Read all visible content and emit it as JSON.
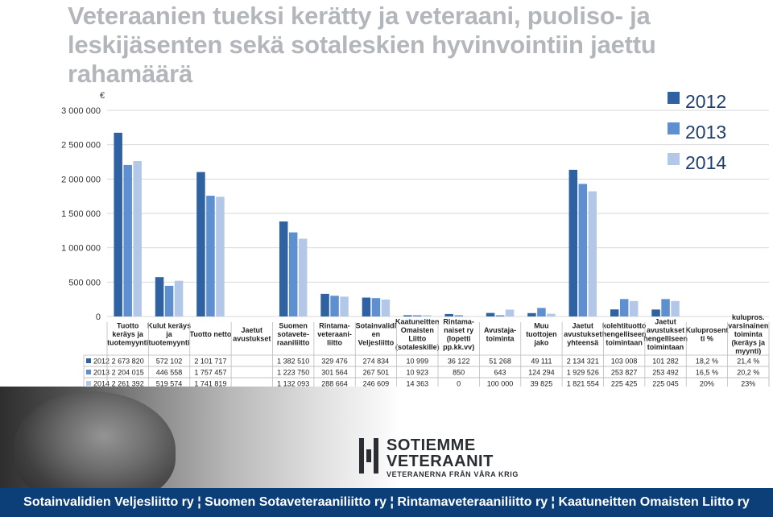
{
  "page": {
    "title": "Veteraanien tueksi kerätty ja veteraani, puoliso- ja leskijäsenten sekä sotaleskien hyvinvointiin jaettu rahamäärä",
    "footer": "Sotainvalidien Veljesliitto ry ¦ Suomen Sotaveteraaniliitto ry ¦ Rintamaveteraaniliitto ry ¦ Kaatuneitten Omaisten Liitto ry",
    "logo": {
      "line1": "SOTIEMME",
      "line2": "VETERAANIT",
      "line3": "VETERANERNA FRÅN VÅRA KRIG"
    }
  },
  "chart_data": {
    "type": "bar",
    "unit": "€",
    "ylim": [
      0,
      3000000
    ],
    "yticks": [
      "0",
      "500 000",
      "1 000 000",
      "1 500 000",
      "2 000 000",
      "2 500 000",
      "3 000 000"
    ],
    "grid": true,
    "legend_position": "top-right",
    "colors": [
      "#2e62a3",
      "#5e8fd1",
      "#b3c8e8"
    ],
    "categories": [
      "Tuotto keräys ja tuotemyynti",
      "Kulut keräys ja tuotemyynti",
      "Tuotto netto",
      "Jaetut avustukset",
      "Suomen sotaveteraaniliitto",
      "Rintama-veteraaniliitto",
      "Sotainvalidien Veljesliitto",
      "Kaatuneitten Omaisten Liitto (sotaleskille)",
      "Rintama-naiset ry (lopetti pp.kk.vv)",
      "Avustaja-toiminta",
      "Muu tuottojen jako",
      "Jaetut avustukset yhteensä",
      "kolehtituotto hengelliseen toimintaan",
      "Jaetut avustukset hengelliseen toimintaan",
      "Kuluprosentti %",
      "kulupros. varsinainen toiminta (keräys ja myynti)"
    ],
    "category_lines": [
      [
        "Tuotto",
        "keräys ja",
        "tuotemyynti"
      ],
      [
        "Kulut keräys",
        "ja",
        "tuotemyynti"
      ],
      [
        "Tuotto netto"
      ],
      [
        "Jaetut",
        "avustukset"
      ],
      [
        "Suomen",
        "sotavete-",
        "raaniliitto"
      ],
      [
        "Rintama-",
        "veteraani-",
        "liitto"
      ],
      [
        "Sotainvalidi",
        "en",
        "Veljesliitto"
      ],
      [
        "Kaatuneitten",
        "Omaisten",
        "Liitto",
        "(sotaleskille)"
      ],
      [
        "Rintama-",
        "naiset ry",
        "(lopetti",
        "pp.kk.vv)"
      ],
      [
        "Avustaja-",
        "toiminta"
      ],
      [
        "Muu",
        "tuottojen",
        "jako"
      ],
      [
        "Jaetut",
        "avustukset",
        "yhteensä"
      ],
      [
        "kolehtituotto",
        "hengelliseen",
        "toimintaan"
      ],
      [
        "Jaetut",
        "avustukset",
        "hengelliseen",
        "toimintaan"
      ],
      [
        "Kuluprosent",
        "ti %"
      ],
      [
        "kulupros.",
        "varsinainen",
        "toiminta",
        "(keräys ja",
        "myynti)"
      ]
    ],
    "series": [
      {
        "name": "2012",
        "values": [
          2673820,
          572102,
          2101717,
          null,
          1382510,
          329476,
          274834,
          10999,
          36122,
          51268,
          49111,
          2134321,
          103008,
          101282,
          null,
          null
        ],
        "labels": [
          "2 673 820",
          "572 102",
          "2 101 717",
          "",
          "1 382 510",
          "329 476",
          "274 834",
          "10 999",
          "36 122",
          "51 268",
          "49 111",
          "2 134 321",
          "103 008",
          "101 282",
          "18,2 %",
          "21,4 %"
        ]
      },
      {
        "name": "2013",
        "values": [
          2204015,
          446558,
          1757457,
          null,
          1223750,
          301564,
          267501,
          10923,
          850,
          643,
          124294,
          1929526,
          253827,
          253492,
          null,
          null
        ],
        "labels": [
          "2 204 015",
          "446 558",
          "1 757 457",
          "",
          "1 223 750",
          "301 564",
          "267 501",
          "10 923",
          "850",
          "643",
          "124 294",
          "1 929 526",
          "253 827",
          "253 492",
          "16,5 %",
          "20,2 %"
        ]
      },
      {
        "name": "2014",
        "values": [
          2261392,
          519574,
          1741819,
          null,
          1132093,
          288664,
          246609,
          14363,
          0,
          100000,
          39825,
          1821554,
          225425,
          225045,
          null,
          null
        ],
        "labels": [
          "2 261 392",
          "519 574",
          "1 741 819",
          "",
          "1 132 093",
          "288 664",
          "246 609",
          "14 363",
          "0",
          "100 000",
          "39 825",
          "1 821 554",
          "225 425",
          "225 045",
          "20%",
          "23%"
        ]
      }
    ]
  }
}
